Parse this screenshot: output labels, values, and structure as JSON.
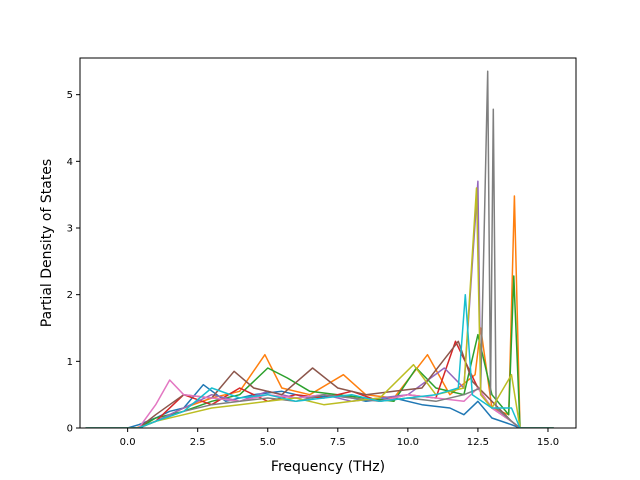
{
  "chart_data": {
    "type": "line",
    "title": "",
    "xlabel": "Frequency (THz)",
    "ylabel": "Partial Density of States",
    "xlim": [
      -1.7,
      16.0
    ],
    "ylim": [
      0,
      5.55
    ],
    "xticks": [
      0.0,
      2.5,
      5.0,
      7.5,
      10.0,
      12.5,
      15.0
    ],
    "xtick_labels": [
      "0.0",
      "2.5",
      "5.0",
      "7.5",
      "10.0",
      "12.5",
      "15.0"
    ],
    "yticks": [
      0,
      1,
      2,
      3,
      4,
      5
    ],
    "ytick_labels": [
      "0",
      "1",
      "2",
      "3",
      "4",
      "5"
    ],
    "grid": false,
    "legend": "none",
    "series_colors": [
      "#1f77b4",
      "#ff7f0e",
      "#2ca02c",
      "#d62728",
      "#9467bd",
      "#8c564b",
      "#e377c2",
      "#7f7f7f",
      "#bcbd22",
      "#17becf"
    ],
    "series": [
      {
        "color": "#1f77b4",
        "x": [
          -1.5,
          0.0,
          0.4,
          1.0,
          1.5,
          2.0,
          2.7,
          3.5,
          4.5,
          5.5,
          6.5,
          7.5,
          8.5,
          9.5,
          10.5,
          11.5,
          12.0,
          12.5,
          13.0,
          13.7,
          14.0,
          15.2
        ],
        "y": [
          0,
          0,
          0.05,
          0.15,
          0.25,
          0.3,
          0.65,
          0.4,
          0.5,
          0.55,
          0.45,
          0.5,
          0.4,
          0.45,
          0.35,
          0.3,
          0.2,
          0.4,
          0.15,
          0.05,
          0,
          0
        ]
      },
      {
        "color": "#ff7f0e",
        "x": [
          -1.5,
          0.3,
          1.0,
          2.0,
          3.0,
          4.0,
          4.9,
          5.5,
          6.5,
          7.7,
          8.5,
          9.5,
          10.7,
          11.5,
          12.4,
          12.6,
          13.0,
          13.6,
          13.8,
          14.0,
          15.2
        ],
        "y": [
          0,
          0,
          0.1,
          0.3,
          0.45,
          0.55,
          1.1,
          0.6,
          0.5,
          0.8,
          0.5,
          0.45,
          1.1,
          0.5,
          0.8,
          1.5,
          0.3,
          0.2,
          3.48,
          0,
          0
        ]
      },
      {
        "color": "#2ca02c",
        "x": [
          -1.5,
          0.4,
          1.0,
          2.0,
          3.0,
          4.0,
          5.0,
          5.7,
          6.5,
          7.5,
          8.5,
          9.5,
          10.3,
          11.0,
          12.0,
          12.5,
          13.0,
          13.6,
          13.78,
          14.0,
          15.2
        ],
        "y": [
          0,
          0,
          0.15,
          0.25,
          0.4,
          0.5,
          0.9,
          0.75,
          0.55,
          0.5,
          0.45,
          0.4,
          0.9,
          0.6,
          0.5,
          1.4,
          0.5,
          0.2,
          2.28,
          0,
          0
        ]
      },
      {
        "color": "#d62728",
        "x": [
          -1.5,
          0.4,
          1.0,
          2.0,
          3.0,
          4.0,
          5.0,
          6.0,
          7.0,
          8.0,
          9.0,
          10.0,
          11.0,
          11.7,
          12.5,
          13.0,
          13.7,
          14.0,
          15.2
        ],
        "y": [
          0,
          0,
          0.1,
          0.5,
          0.35,
          0.6,
          0.4,
          0.5,
          0.45,
          0.55,
          0.4,
          0.5,
          0.45,
          1.3,
          0.6,
          0.3,
          0.1,
          0,
          0
        ]
      },
      {
        "color": "#9467bd",
        "x": [
          -1.5,
          0.4,
          1.0,
          2.0,
          3.0,
          4.0,
          5.0,
          6.0,
          7.0,
          8.0,
          9.0,
          10.0,
          11.3,
          12.0,
          12.5,
          12.6,
          13.0,
          13.7,
          14.0,
          15.2
        ],
        "y": [
          0,
          0,
          0.1,
          0.3,
          0.5,
          0.4,
          0.55,
          0.45,
          0.5,
          0.4,
          0.45,
          0.5,
          0.9,
          0.6,
          3.7,
          0.5,
          0.3,
          0.1,
          0,
          0
        ]
      },
      {
        "color": "#8c564b",
        "x": [
          -1.5,
          0.4,
          1.0,
          2.0,
          3.0,
          3.8,
          4.5,
          5.5,
          6.6,
          7.5,
          8.5,
          9.5,
          10.5,
          11.8,
          12.3,
          13.0,
          13.7,
          14.0,
          15.2
        ],
        "y": [
          0,
          0,
          0.2,
          0.5,
          0.45,
          0.85,
          0.6,
          0.5,
          0.9,
          0.6,
          0.5,
          0.55,
          0.6,
          1.3,
          0.7,
          0.4,
          0.1,
          0,
          0
        ]
      },
      {
        "color": "#e377c2",
        "x": [
          -1.5,
          0.4,
          1.0,
          1.5,
          2.0,
          3.0,
          4.0,
          5.0,
          6.0,
          7.0,
          8.0,
          9.0,
          10.0,
          11.0,
          12.0,
          12.5,
          13.0,
          13.7,
          14.0,
          15.2
        ],
        "y": [
          0,
          0,
          0.35,
          0.72,
          0.5,
          0.45,
          0.4,
          0.5,
          0.45,
          0.5,
          0.45,
          0.4,
          0.5,
          0.45,
          0.4,
          0.6,
          0.3,
          0.1,
          0,
          0
        ]
      },
      {
        "color": "#7f7f7f",
        "x": [
          -1.5,
          0.4,
          1.0,
          2.0,
          3.0,
          4.0,
          5.0,
          6.0,
          7.0,
          8.0,
          9.0,
          10.0,
          11.0,
          12.0,
          12.6,
          12.85,
          12.95,
          13.05,
          13.15,
          13.7,
          14.0,
          15.2
        ],
        "y": [
          0,
          0,
          0.1,
          0.25,
          0.35,
          0.4,
          0.45,
          0.4,
          0.5,
          0.45,
          0.4,
          0.45,
          0.4,
          0.5,
          0.6,
          5.35,
          0.5,
          4.78,
          0.3,
          0.1,
          0,
          0
        ]
      },
      {
        "color": "#bcbd22",
        "x": [
          -1.5,
          0.4,
          1.0,
          2.0,
          3.0,
          4.0,
          5.0,
          6.0,
          7.0,
          8.0,
          9.0,
          10.2,
          11.0,
          12.0,
          12.45,
          12.6,
          13.0,
          13.7,
          14.0,
          15.2
        ],
        "y": [
          0,
          0,
          0.1,
          0.2,
          0.3,
          0.35,
          0.4,
          0.45,
          0.35,
          0.4,
          0.45,
          0.95,
          0.5,
          0.6,
          3.6,
          0.5,
          0.3,
          0.8,
          0,
          0
        ]
      },
      {
        "color": "#17becf",
        "x": [
          -1.5,
          0.4,
          1.0,
          2.0,
          3.0,
          4.0,
          5.0,
          6.0,
          7.0,
          8.0,
          9.0,
          10.0,
          11.0,
          11.8,
          12.05,
          12.3,
          13.0,
          13.7,
          14.0,
          15.2
        ],
        "y": [
          0,
          0,
          0.1,
          0.25,
          0.6,
          0.45,
          0.5,
          0.4,
          0.45,
          0.5,
          0.4,
          0.45,
          0.5,
          0.6,
          2.0,
          0.5,
          0.3,
          0.3,
          0,
          0
        ]
      }
    ]
  }
}
